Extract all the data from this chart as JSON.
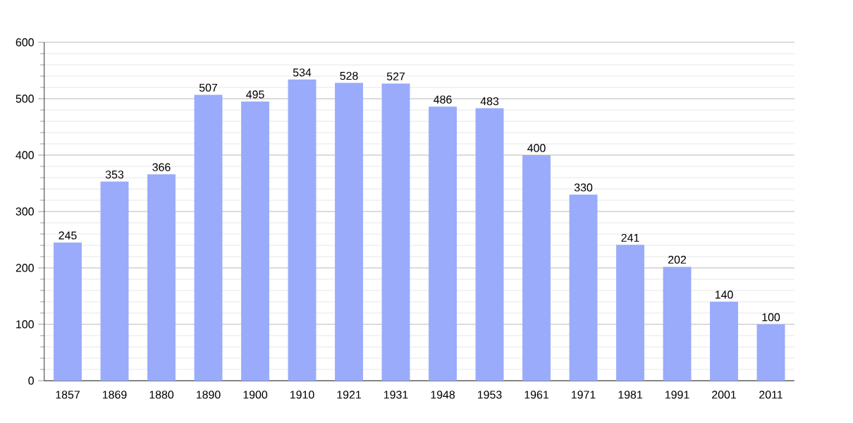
{
  "chart_data": {
    "type": "bar",
    "categories": [
      "1857",
      "1869",
      "1880",
      "1890",
      "1900",
      "1910",
      "1921",
      "1931",
      "1948",
      "1953",
      "1961",
      "1971",
      "1981",
      "1991",
      "2001",
      "2011"
    ],
    "values": [
      245,
      353,
      366,
      507,
      495,
      534,
      528,
      527,
      486,
      483,
      400,
      330,
      241,
      202,
      140,
      100
    ],
    "color": "#9aabfb",
    "ylim": [
      0,
      600
    ],
    "yticks": [
      0,
      100,
      200,
      300,
      400,
      500,
      600
    ],
    "grid": "y",
    "data_labels": true
  }
}
